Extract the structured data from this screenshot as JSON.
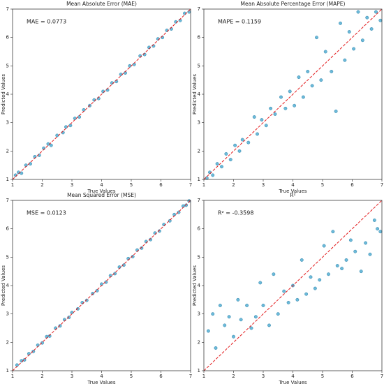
{
  "chart_data": [
    {
      "type": "scatter",
      "title": "Mean Absolute Error (MAE)",
      "annotation": "MAE = 0.0773",
      "x_label": "True Values",
      "y_label": "Predicted Values",
      "xlim": [
        1,
        7
      ],
      "ylim": [
        1,
        7
      ],
      "xticks": [
        1,
        2,
        3,
        4,
        5,
        6,
        7
      ],
      "yticks": [
        1,
        2,
        3,
        4,
        5,
        6,
        7
      ],
      "color": "#3ba3cc",
      "line_color": "#e31a1c",
      "x": [
        1.1,
        1.2,
        1.3,
        1.45,
        1.6,
        1.75,
        1.9,
        2.05,
        2.2,
        2.3,
        2.5,
        2.7,
        2.8,
        2.95,
        3.1,
        3.25,
        3.4,
        3.6,
        3.75,
        3.9,
        4.05,
        4.2,
        4.35,
        4.5,
        4.65,
        4.8,
        4.95,
        5.1,
        5.3,
        5.45,
        5.6,
        5.75,
        5.9,
        6.05,
        6.2,
        6.35,
        6.5,
        6.65,
        6.8,
        6.95
      ],
      "y": [
        1.15,
        1.25,
        1.22,
        1.5,
        1.55,
        1.8,
        1.85,
        2.1,
        2.25,
        2.2,
        2.55,
        2.65,
        2.85,
        2.9,
        3.15,
        3.2,
        3.45,
        3.6,
        3.8,
        3.85,
        4.1,
        4.15,
        4.4,
        4.45,
        4.7,
        4.75,
        5.0,
        5.05,
        5.35,
        5.4,
        5.65,
        5.7,
        5.95,
        6.0,
        6.25,
        6.3,
        6.55,
        6.6,
        6.85,
        6.9
      ]
    },
    {
      "type": "scatter",
      "title": "Mean Absolute Percentage Error (MAPE)",
      "annotation": "MAPE = 0.1159",
      "x_label": "True Values",
      "y_label": "Predicted Values",
      "xlim": [
        1,
        7
      ],
      "ylim": [
        1,
        7
      ],
      "xticks": [
        1,
        2,
        3,
        4,
        5,
        6,
        7
      ],
      "yticks": [
        1,
        2,
        3,
        4,
        5,
        6,
        7
      ],
      "color": "#3ba3cc",
      "line_color": "#e31a1c",
      "x": [
        1.1,
        1.2,
        1.3,
        1.45,
        1.6,
        1.75,
        1.9,
        2.05,
        2.2,
        2.3,
        2.5,
        2.7,
        2.8,
        2.95,
        3.1,
        3.25,
        3.4,
        3.6,
        3.75,
        3.9,
        4.05,
        4.2,
        4.35,
        4.5,
        4.65,
        4.8,
        4.95,
        5.1,
        5.3,
        5.45,
        5.6,
        5.75,
        5.9,
        6.05,
        6.2,
        6.35,
        6.5,
        6.65,
        6.8,
        6.95
      ],
      "y": [
        1.05,
        1.25,
        1.15,
        1.55,
        1.45,
        1.9,
        1.7,
        2.2,
        2.0,
        2.4,
        2.3,
        3.2,
        2.6,
        3.1,
        2.9,
        3.5,
        3.3,
        3.9,
        3.5,
        4.1,
        3.6,
        4.6,
        3.9,
        4.8,
        4.3,
        6.0,
        4.5,
        5.5,
        4.8,
        3.4,
        6.5,
        5.2,
        6.2,
        5.6,
        6.9,
        5.9,
        6.7,
        6.3,
        6.9,
        6.6
      ]
    },
    {
      "type": "scatter",
      "title": "Mean Squared Error (MSE)",
      "annotation": "MSE = 0.0123",
      "x_label": "True Values",
      "y_label": "Predicted Values",
      "xlim": [
        1,
        7
      ],
      "ylim": [
        1,
        7
      ],
      "xticks": [
        1,
        2,
        3,
        4,
        5,
        6,
        7
      ],
      "yticks": [
        1,
        2,
        3,
        4,
        5,
        6,
        7
      ],
      "color": "#3ba3cc",
      "line_color": "#e31a1c",
      "x": [
        1.15,
        1.3,
        1.4,
        1.55,
        1.7,
        1.85,
        2.0,
        2.15,
        2.25,
        2.45,
        2.6,
        2.75,
        2.9,
        3.0,
        3.2,
        3.35,
        3.5,
        3.7,
        3.85,
        4.0,
        4.15,
        4.3,
        4.45,
        4.6,
        4.75,
        4.9,
        5.05,
        5.2,
        5.35,
        5.5,
        5.65,
        5.8,
        5.95,
        6.1,
        6.3,
        6.45,
        6.6,
        6.75,
        6.85,
        6.95
      ],
      "y": [
        1.2,
        1.35,
        1.38,
        1.6,
        1.68,
        1.9,
        1.98,
        2.2,
        2.22,
        2.5,
        2.58,
        2.8,
        2.88,
        3.05,
        3.18,
        3.4,
        3.48,
        3.72,
        3.82,
        4.05,
        4.12,
        4.35,
        4.42,
        4.65,
        4.72,
        4.95,
        5.02,
        5.25,
        5.32,
        5.55,
        5.62,
        5.85,
        5.92,
        6.15,
        6.28,
        6.5,
        6.58,
        6.8,
        6.83,
        6.98
      ]
    },
    {
      "type": "scatter",
      "title": "R²",
      "annotation": "R² = -0.3598",
      "x_label": "True Values",
      "y_label": "Predicted Values",
      "xlim": [
        1,
        7
      ],
      "ylim": [
        1,
        7
      ],
      "xticks": [
        1,
        2,
        3,
        4,
        5,
        6,
        7
      ],
      "yticks": [
        1,
        2,
        3,
        4,
        5,
        6,
        7
      ],
      "color": "#3ba3cc",
      "line_color": "#e31a1c",
      "x": [
        1.15,
        1.3,
        1.4,
        1.55,
        1.7,
        1.85,
        2.0,
        2.15,
        2.25,
        2.45,
        2.6,
        2.75,
        2.9,
        3.0,
        3.2,
        3.35,
        3.5,
        3.7,
        3.85,
        4.0,
        4.15,
        4.3,
        4.45,
        4.6,
        4.75,
        4.9,
        5.05,
        5.2,
        5.35,
        5.5,
        5.65,
        5.8,
        5.95,
        6.1,
        6.3,
        6.45,
        6.6,
        6.75,
        6.85,
        6.95
      ],
      "y": [
        2.4,
        3.0,
        1.8,
        3.3,
        2.6,
        2.9,
        2.2,
        3.5,
        2.8,
        3.3,
        2.5,
        2.9,
        4.1,
        3.3,
        2.6,
        4.4,
        3.0,
        3.8,
        3.4,
        4.0,
        3.5,
        4.9,
        3.7,
        4.3,
        3.9,
        4.2,
        5.4,
        4.4,
        5.9,
        4.7,
        4.6,
        4.9,
        5.6,
        5.2,
        4.5,
        5.5,
        5.1,
        6.3,
        6.0,
        5.9
      ]
    }
  ]
}
